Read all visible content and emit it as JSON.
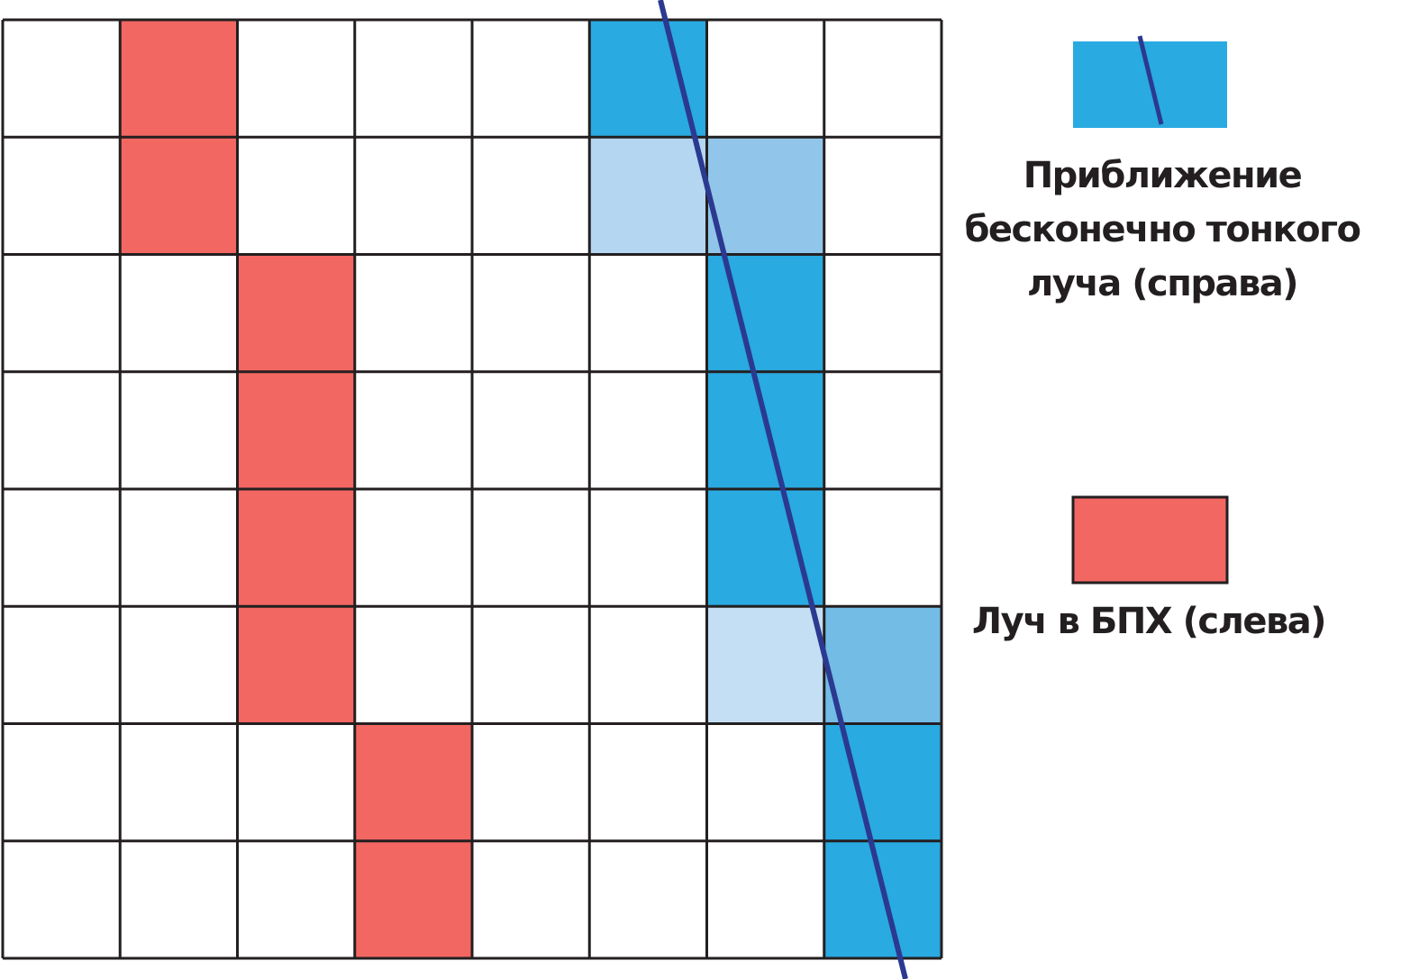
{
  "grid": {
    "rows": 8,
    "cols": 8
  },
  "colors": {
    "red": "#f26762",
    "blue": "#29aae1",
    "blue_mid": "#91c5ea",
    "blue_light": "#b4d6f1",
    "blue_lighter": "#c4def3",
    "blue_soft": "#72bce6",
    "line": "#2b3990",
    "grid": "#231f20"
  },
  "left_ray": {
    "cells": [
      [
        0,
        1
      ],
      [
        1,
        1
      ],
      [
        2,
        2
      ],
      [
        3,
        2
      ],
      [
        4,
        2
      ],
      [
        5,
        2
      ],
      [
        6,
        3
      ],
      [
        7,
        3
      ]
    ]
  },
  "right_ray": {
    "cells": [
      {
        "r": 0,
        "c": 5,
        "tone": "blue"
      },
      {
        "r": 1,
        "c": 5,
        "tone": "blue_light"
      },
      {
        "r": 1,
        "c": 6,
        "tone": "blue_mid"
      },
      {
        "r": 2,
        "c": 6,
        "tone": "blue"
      },
      {
        "r": 3,
        "c": 6,
        "tone": "blue"
      },
      {
        "r": 4,
        "c": 6,
        "tone": "blue"
      },
      {
        "r": 5,
        "c": 6,
        "tone": "blue_lighter"
      },
      {
        "r": 5,
        "c": 7,
        "tone": "blue_soft"
      },
      {
        "r": 6,
        "c": 7,
        "tone": "blue"
      },
      {
        "r": 7,
        "c": 7,
        "tone": "blue"
      }
    ]
  },
  "legend": {
    "right_label": "Приближение бесконечно тонкого луча (справа)",
    "left_label": "Луч в БПХ (слева)"
  }
}
